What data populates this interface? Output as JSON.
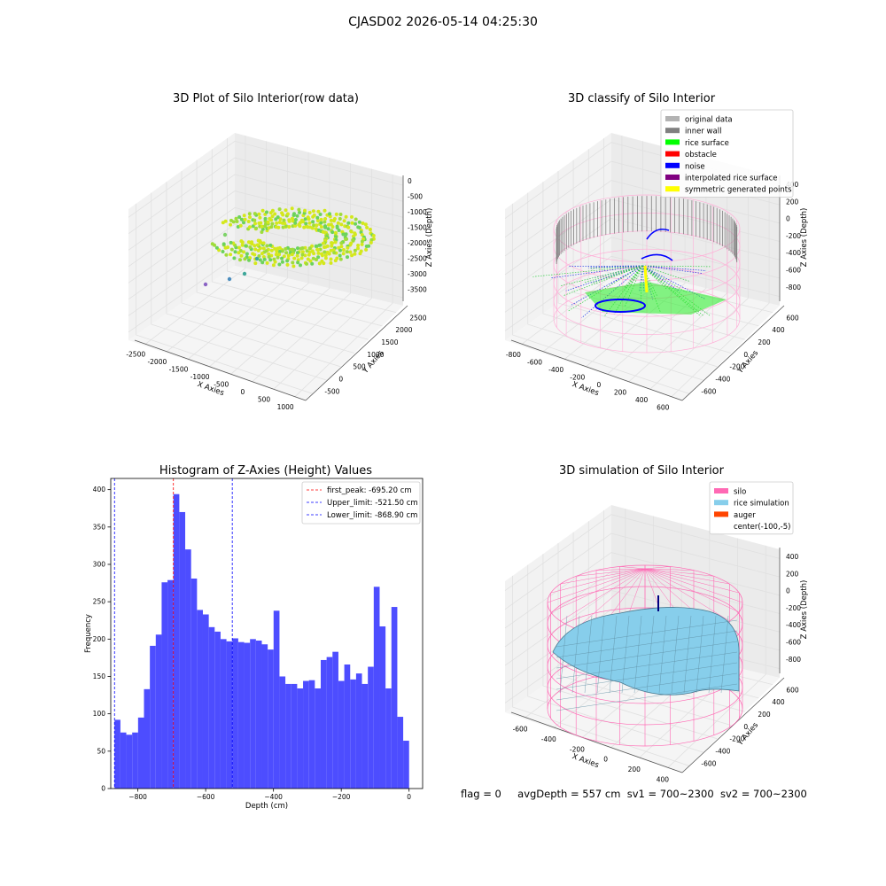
{
  "suptitle": "CJASD02 2026-05-14 04:25:30",
  "panels": {
    "raw": {
      "title": "3D Plot of Silo Interior(row data)",
      "xlabel": "X Axies",
      "ylabel": "Y Axies",
      "zlabel": "Z Axies (Depth)",
      "xticks": [
        "-2500",
        "-2000",
        "-1500",
        "-1000",
        "-500",
        "0",
        "500",
        "1000"
      ],
      "yticks": [
        "-500",
        "0",
        "500",
        "1000",
        "1500",
        "2000",
        "2500"
      ],
      "zticks": [
        "0",
        "-500",
        "-1000",
        "-1500",
        "-2000",
        "-2500",
        "-3000",
        "-3500"
      ]
    },
    "classify": {
      "title": "3D classify of Silo Interior",
      "xlabel": "X Axies",
      "ylabel": "Y Axies",
      "zlabel": "Z Axies (Depth)",
      "xticks": [
        "-800",
        "-600",
        "-400",
        "-200",
        "0",
        "200",
        "400",
        "600"
      ],
      "yticks": [
        "-600",
        "-400",
        "-200",
        "0",
        "200",
        "400",
        "600"
      ],
      "zticks": [
        "400",
        "200",
        "0",
        "-200",
        "-400",
        "-600",
        "-800"
      ],
      "legend": [
        {
          "label": "original data",
          "color": "#b3b3b3"
        },
        {
          "label": "inner wall",
          "color": "#808080"
        },
        {
          "label": "rice surface",
          "color": "#00ff00"
        },
        {
          "label": "obstacle",
          "color": "#ff0000"
        },
        {
          "label": "noise",
          "color": "#0000ff"
        },
        {
          "label": "interpolated rice surface",
          "color": "#800080"
        },
        {
          "label": "symmetric generated points",
          "color": "#ffff00"
        }
      ]
    },
    "sim": {
      "title": "3D simulation of Silo Interior",
      "xlabel": "X Axies",
      "ylabel": "Y Axies",
      "zlabel": "Z Axies (Depth)",
      "xticks": [
        "-600",
        "-400",
        "-200",
        "0",
        "200",
        "400"
      ],
      "yticks": [
        "-600",
        "-400",
        "-200",
        "0",
        "200",
        "400",
        "600"
      ],
      "zticks": [
        "400",
        "200",
        "0",
        "-200",
        "-400",
        "-600",
        "-800"
      ],
      "legend": [
        {
          "label": "silo",
          "color": "#ff69b4"
        },
        {
          "label": "rice simulation",
          "color": "#87ceeb"
        },
        {
          "label": "auger",
          "color": "#ff4500"
        },
        {
          "label": "center(-100,-5)",
          "color": ""
        }
      ]
    }
  },
  "chart_data": [
    {
      "type": "bar",
      "title": "Histogram of Z-Axies (Height) Values",
      "xlabel": "Depth (cm)",
      "ylabel": "Frequency",
      "xlim": [
        -880,
        40
      ],
      "ylim": [
        0,
        415
      ],
      "xticks": [
        -800,
        -600,
        -400,
        -200,
        0
      ],
      "yticks": [
        0,
        50,
        100,
        150,
        200,
        250,
        300,
        350,
        400
      ],
      "bar_color": "#4d4dff",
      "bins_start": -868.9,
      "bin_width": 17.38,
      "values": [
        92,
        75,
        72,
        75,
        95,
        133,
        191,
        206,
        276,
        279,
        394,
        370,
        320,
        281,
        239,
        233,
        216,
        210,
        200,
        197,
        201,
        196,
        195,
        200,
        198,
        193,
        186,
        238,
        150,
        140,
        140,
        134,
        144,
        145,
        134,
        172,
        176,
        183,
        144,
        166,
        146,
        154,
        140,
        163,
        270,
        217,
        134,
        243,
        96,
        64
      ],
      "vlines": [
        {
          "name": "first_peak: -695.20 cm",
          "x": -695.2,
          "color": "#ff0000"
        },
        {
          "name": "Upper_limit: -521.50 cm",
          "x": -521.5,
          "color": "#0000ff"
        },
        {
          "name": "Lower_limit: -868.90 cm",
          "x": -868.9,
          "color": "#0000ff"
        }
      ],
      "legend_position": "upper right"
    }
  ],
  "footer": {
    "flag": "flag = 0",
    "avg": "avgDepth = 557 cm",
    "sv1": "sv1 = 700~2300",
    "sv2": "sv2 = 700~2300"
  }
}
